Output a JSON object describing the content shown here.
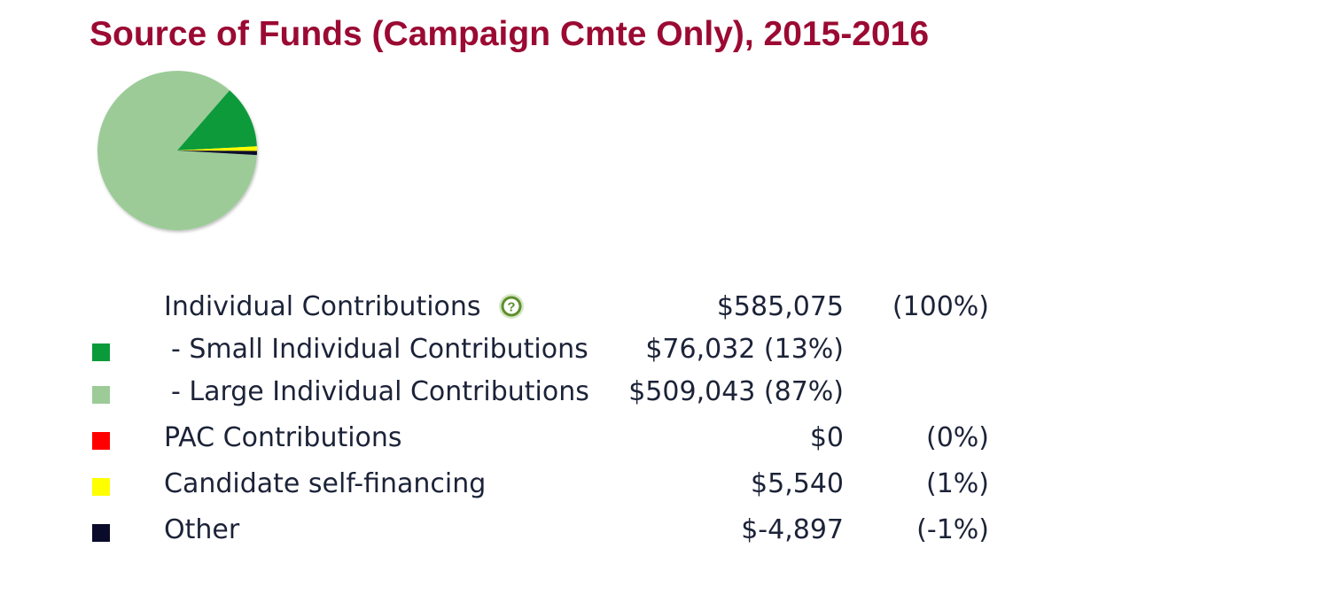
{
  "chart_data": {
    "type": "pie",
    "title": "Source of Funds (Campaign Cmte Only), 2015-2016",
    "slices": [
      {
        "label": "Small Individual Contributions",
        "value": 76032,
        "color": "#0a9a3a"
      },
      {
        "label": "Large Individual Contributions",
        "value": 509043,
        "color": "#9ccb98"
      },
      {
        "label": "PAC Contributions",
        "value": 0,
        "color": "#ff0000"
      },
      {
        "label": "Candidate self-financing",
        "value": 5540,
        "color": "#ffff00"
      },
      {
        "label": "Other",
        "value": -4897,
        "color": "#0a0a2a"
      }
    ]
  },
  "legend": {
    "help_icon": "question-circle-icon",
    "rows": [
      {
        "label": "Individual Contributions",
        "amount": "$585,075",
        "pct": "(100%)"
      },
      {
        "label": "- Small Individual Contributions",
        "amount": "$76,032 (13%)",
        "pct": "",
        "color": "#0a9a3a"
      },
      {
        "label": "- Large Individual Contributions",
        "amount": "$509,043 (87%)",
        "pct": "",
        "color": "#9ccb98"
      },
      {
        "label": "PAC Contributions",
        "amount": "$0",
        "pct": "(0%)",
        "color": "#ff0000"
      },
      {
        "label": "Candidate self-financing",
        "amount": "$5,540",
        "pct": "(1%)",
        "color": "#ffff00"
      },
      {
        "label": "Other",
        "amount": "$-4,897",
        "pct": "(-1%)",
        "color": "#0a0a2a"
      }
    ]
  }
}
